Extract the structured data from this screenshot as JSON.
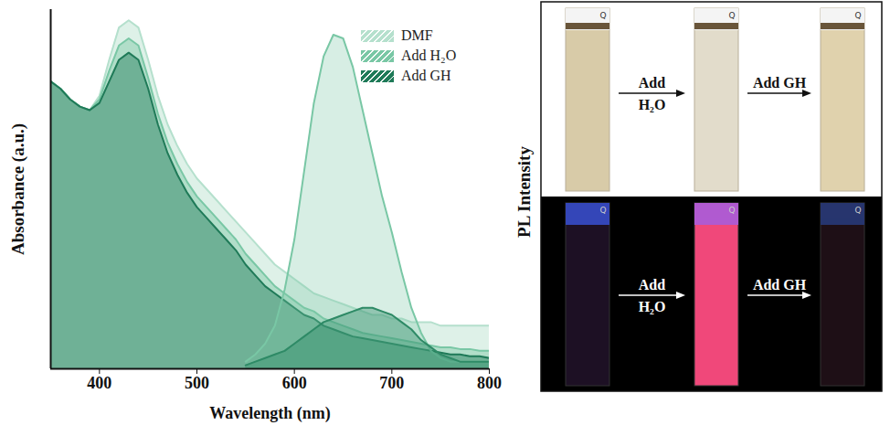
{
  "chart_data": {
    "type": "area",
    "x_label": "Wavelength (nm)",
    "y_label": "Absorbance (a.u.)",
    "y2_label": "PL Intensity",
    "x": [
      350,
      360,
      370,
      380,
      390,
      400,
      410,
      420,
      430,
      440,
      450,
      460,
      470,
      480,
      490,
      500,
      510,
      520,
      530,
      540,
      550,
      560,
      570,
      580,
      590,
      600,
      610,
      620,
      630,
      640,
      650,
      660,
      670,
      680,
      690,
      700,
      710,
      720,
      730,
      740,
      750,
      760,
      770,
      780,
      790,
      800
    ],
    "xlim": [
      350,
      800
    ],
    "xticks": [
      400,
      500,
      600,
      700,
      800
    ],
    "ylim": [
      0,
      1
    ],
    "yticks": [],
    "y2lim": [
      0,
      1
    ],
    "y2ticks": [],
    "tick_labels": "x",
    "grid": false,
    "legend": "top-right",
    "series": [
      {
        "name": "DMF",
        "color": "#b5e0cd",
        "axis": "y",
        "values": [
          0.8,
          0.78,
          0.75,
          0.73,
          0.72,
          0.76,
          0.86,
          0.95,
          0.97,
          0.95,
          0.86,
          0.76,
          0.68,
          0.62,
          0.57,
          0.53,
          0.5,
          0.47,
          0.44,
          0.41,
          0.38,
          0.35,
          0.32,
          0.29,
          0.27,
          0.25,
          0.23,
          0.21,
          0.2,
          0.19,
          0.18,
          0.17,
          0.16,
          0.15,
          0.15,
          0.14,
          0.14,
          0.13,
          0.13,
          0.13,
          0.12,
          0.12,
          0.12,
          0.12,
          0.12,
          0.12
        ]
      },
      {
        "name": "Add H₂O",
        "color": "#79c7a5",
        "axis": "y",
        "values": [
          0.8,
          0.78,
          0.75,
          0.73,
          0.72,
          0.75,
          0.83,
          0.9,
          0.92,
          0.9,
          0.81,
          0.71,
          0.63,
          0.57,
          0.52,
          0.48,
          0.45,
          0.42,
          0.39,
          0.36,
          0.32,
          0.29,
          0.26,
          0.23,
          0.21,
          0.19,
          0.17,
          0.16,
          0.14,
          0.13,
          0.12,
          0.11,
          0.1,
          0.095,
          0.09,
          0.085,
          0.08,
          0.075,
          0.07,
          0.065,
          0.06,
          0.06,
          0.055,
          0.055,
          0.05,
          0.05
        ]
      },
      {
        "name": "Add GH",
        "color": "#1f7a58",
        "axis": "y",
        "values": [
          0.8,
          0.78,
          0.75,
          0.73,
          0.72,
          0.74,
          0.8,
          0.86,
          0.88,
          0.86,
          0.78,
          0.68,
          0.6,
          0.54,
          0.49,
          0.45,
          0.42,
          0.39,
          0.36,
          0.33,
          0.29,
          0.26,
          0.23,
          0.21,
          0.19,
          0.17,
          0.15,
          0.14,
          0.12,
          0.11,
          0.1,
          0.09,
          0.085,
          0.08,
          0.075,
          0.07,
          0.065,
          0.06,
          0.055,
          0.05,
          0.045,
          0.04,
          0.04,
          0.035,
          0.035,
          0.03
        ]
      },
      {
        "name": "Add H₂O",
        "color": "#79c7a5",
        "axis": "y2",
        "values": [
          null,
          null,
          null,
          null,
          null,
          null,
          null,
          null,
          null,
          null,
          null,
          null,
          null,
          null,
          null,
          null,
          null,
          null,
          null,
          null,
          0.02,
          0.04,
          0.07,
          0.12,
          0.22,
          0.36,
          0.55,
          0.74,
          0.87,
          0.93,
          0.92,
          0.84,
          0.72,
          0.6,
          0.48,
          0.38,
          0.27,
          0.17,
          0.1,
          0.05,
          0.03,
          0.02,
          0.02,
          0.02,
          0.02,
          0.02
        ]
      },
      {
        "name": "Add GH",
        "color": "#2e8a66",
        "axis": "y2",
        "values": [
          null,
          null,
          null,
          null,
          null,
          null,
          null,
          null,
          null,
          null,
          null,
          null,
          null,
          null,
          null,
          null,
          null,
          null,
          null,
          null,
          0.01,
          0.02,
          0.03,
          0.04,
          0.05,
          0.07,
          0.09,
          0.11,
          0.13,
          0.14,
          0.15,
          0.16,
          0.17,
          0.17,
          0.16,
          0.15,
          0.13,
          0.11,
          0.08,
          0.06,
          0.04,
          0.03,
          0.02,
          0.02,
          0.02,
          0.02
        ]
      }
    ]
  },
  "photos": {
    "cuvette_mark": "Q",
    "rows": [
      {
        "steps": [
          "Add H₂O",
          "Add GH"
        ]
      },
      {
        "steps": [
          "Add H₂O",
          "Add GH"
        ]
      }
    ]
  }
}
